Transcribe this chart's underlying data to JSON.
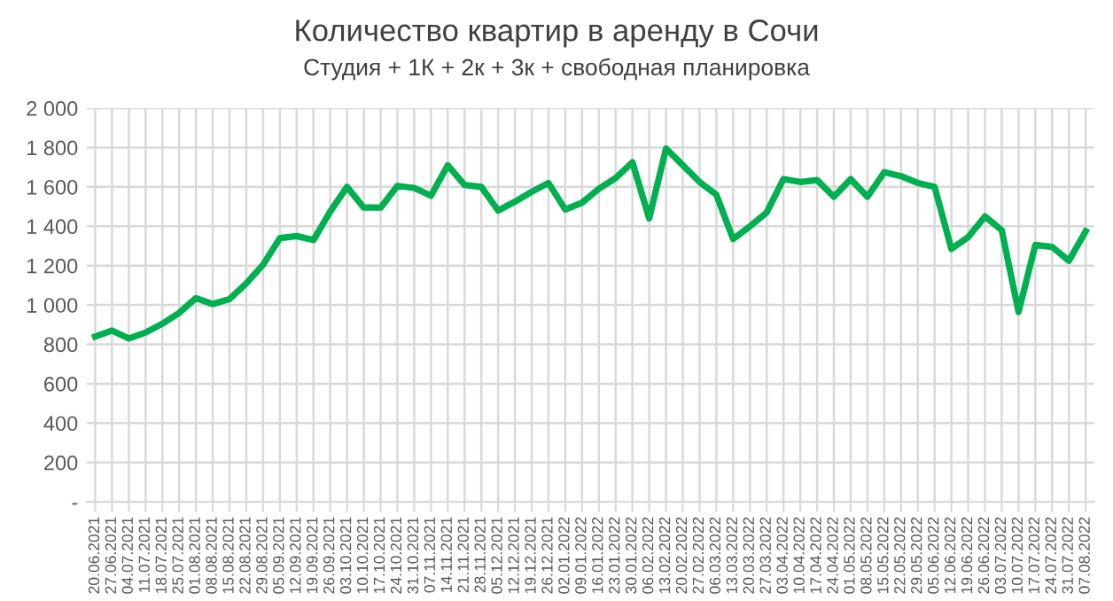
{
  "chart_data": {
    "type": "line",
    "title": "Количество квартир в аренду в Сочи",
    "subtitle": "Студия + 1К + 2к + 3к + свободная планировка",
    "categories": [
      "20.06.2021",
      "27.06.2021",
      "04.07.2021",
      "11.07.2021",
      "18.07.2021",
      "25.07.2021",
      "01.08.2021",
      "08.08.2021",
      "15.08.2021",
      "22.08.2021",
      "29.08.2021",
      "05.09.2021",
      "12.09.2021",
      "19.09.2021",
      "26.09.2021",
      "03.10.2021",
      "10.10.2021",
      "17.10.2021",
      "24.10.2021",
      "31.10.2021",
      "07.11.2021",
      "14.11.2021",
      "21.11.2021",
      "28.11.2021",
      "05.12.2021",
      "12.12.2021",
      "19.12.2021",
      "26.12.2021",
      "02.01.2022",
      "09.01.2022",
      "16.01.2022",
      "23.01.2022",
      "30.01.2022",
      "06.02.2022",
      "13.02.2022",
      "20.02.2022",
      "27.02.2022",
      "06.03.2022",
      "13.03.2022",
      "20.03.2022",
      "27.03.2022",
      "03.04.2022",
      "10.04.2022",
      "17.04.2022",
      "24.04.2022",
      "01.05.2022",
      "08.05.2022",
      "15.05.2022",
      "22.05.2022",
      "29.05.2022",
      "05.06.2022",
      "12.06.2022",
      "19.06.2022",
      "26.06.2022",
      "03.07.2022",
      "10.07.2022",
      "17.07.2022",
      "24.07.2022",
      "31.07.2022",
      "07.08.2022"
    ],
    "series": [
      {
        "color": "#00b050",
        "values": [
          840,
          870,
          830,
          860,
          905,
          960,
          1035,
          1005,
          1030,
          1110,
          1205,
          1340,
          1350,
          1330,
          1475,
          1600,
          1495,
          1495,
          1605,
          1595,
          1555,
          1710,
          1610,
          1600,
          1480,
          1525,
          1575,
          1620,
          1485,
          1520,
          1590,
          1645,
          1725,
          1440,
          1795,
          1710,
          1625,
          1560,
          1335,
          1400,
          1470,
          1640,
          1625,
          1635,
          1550,
          1640,
          1550,
          1675,
          1655,
          1620,
          1600,
          1285,
          1345,
          1450,
          1380,
          965,
          1305,
          1295,
          1225,
          1375
        ]
      }
    ],
    "ylim": [
      0,
      2000
    ],
    "yticks": [
      {
        "value": 0,
        "label": "-"
      },
      {
        "value": 200,
        "label": "200"
      },
      {
        "value": 400,
        "label": "400"
      },
      {
        "value": 600,
        "label": "600"
      },
      {
        "value": 800,
        "label": "800"
      },
      {
        "value": 1000,
        "label": "1 000"
      },
      {
        "value": 1200,
        "label": "1 200"
      },
      {
        "value": 1400,
        "label": "1 400"
      },
      {
        "value": 1600,
        "label": "1 600"
      },
      {
        "value": 1800,
        "label": "1 800"
      },
      {
        "value": 2000,
        "label": "2 000"
      }
    ],
    "grid": true,
    "legend": false,
    "marker": "none",
    "line_style": "solid"
  }
}
